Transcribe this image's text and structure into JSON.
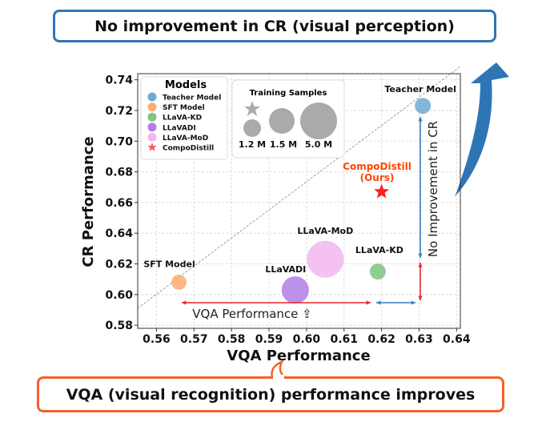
{
  "top_callout": "No improvement in CR (visual perception)",
  "bottom_callout": "VQA (visual recognition) performance improves",
  "colors": {
    "top_border": "#2e75b6",
    "bottom_border": "#f4602b",
    "big_arrow": "#2e75b6",
    "red_arrow": "#e8262b",
    "blue_arrow": "#3a7fc1",
    "ours_label": "#ff4500"
  },
  "chart_data": {
    "type": "scatter",
    "xlabel": "VQA Performance",
    "ylabel": "CR Performance",
    "xlim": [
      0.555,
      0.641
    ],
    "ylim": [
      0.578,
      0.744
    ],
    "xticks": [
      "0.56",
      "0.57",
      "0.58",
      "0.59",
      "0.60",
      "0.61",
      "0.62",
      "0.63",
      "0.64"
    ],
    "yticks": [
      "0.58",
      "0.60",
      "0.62",
      "0.64",
      "0.66",
      "0.68",
      "0.70",
      "0.72",
      "0.74"
    ],
    "grid": true,
    "points": [
      {
        "name": "Teacher Model",
        "label": "Teacher Model",
        "x": 0.631,
        "y": 0.723,
        "color": "#6fa8d4",
        "marker": "circle",
        "samples": ""
      },
      {
        "name": "SFT Model",
        "label": "SFT Model",
        "x": 0.566,
        "y": 0.608,
        "color": "#fdab6e",
        "marker": "circle",
        "samples": "1.2 M"
      },
      {
        "name": "LLaVA-KD",
        "label": "LLaVA-KD",
        "x": 0.619,
        "y": 0.615,
        "color": "#7fc47f",
        "marker": "circle",
        "samples": "1.2 M"
      },
      {
        "name": "LLaVADI",
        "label": "LLaVADI",
        "x": 0.597,
        "y": 0.603,
        "color": "#b07fe6",
        "marker": "circle",
        "samples": "1.5 M"
      },
      {
        "name": "LLaVA-MoD",
        "label": "LLaVA-MoD",
        "x": 0.605,
        "y": 0.623,
        "color": "#f3b6ee",
        "marker": "circle",
        "samples": "5.0 M"
      },
      {
        "name": "CompoDistill",
        "label": "CompoDistill\n(Ours)",
        "x": 0.62,
        "y": 0.667,
        "color": "#ff2020",
        "marker": "star",
        "samples": ""
      }
    ],
    "legend_models": {
      "title": "Models",
      "items": [
        "Teacher Model",
        "SFT Model",
        "LLaVA-KD",
        "LLaVADI",
        "LLaVA-MoD",
        "CompoDistill"
      ],
      "placement": "top-left"
    },
    "legend_samples": {
      "title": "Training Samples",
      "items": [
        "1.2 M",
        "1.5 M",
        "5.0 M"
      ]
    },
    "annotations": {
      "vqa_arrow_label": "VQA Performance ⇪",
      "cr_arrow_label": "No Improvement in CR",
      "ours_line1": "CompoDistill",
      "ours_line2": "(Ours)"
    }
  }
}
